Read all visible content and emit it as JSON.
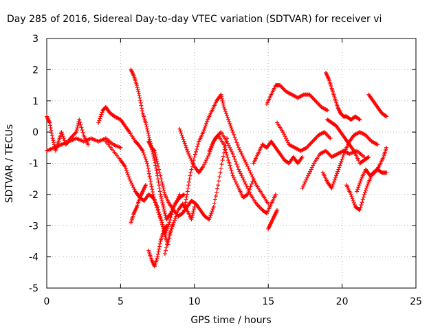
{
  "chart_data": {
    "type": "scatter",
    "title": "Day 285 of 2016, Sidereal Day-to-day VTEC variation (SDTVAR) for receiver vi",
    "xlabel": "GPS time / hours",
    "ylabel": "SDTVAR / TECUs",
    "xlim": [
      0,
      25
    ],
    "ylim": [
      -5,
      3
    ],
    "xticks": [
      "0",
      "5",
      "10",
      "15",
      "20",
      "25"
    ],
    "yticks": [
      "3",
      "2",
      "1",
      "0",
      "-1",
      "-2",
      "-3",
      "-4",
      "-5"
    ],
    "grid": true,
    "marker": "+",
    "color": "#ff0000",
    "series": [
      {
        "x": [
          0.0,
          0.2,
          0.4,
          0.6,
          0.8,
          1.0,
          1.3,
          1.6,
          2.0,
          2.2,
          2.5,
          2.8
        ],
        "y": [
          0.5,
          0.3,
          -0.2,
          -0.6,
          -0.3,
          0.0,
          -0.4,
          -0.2,
          0.0,
          0.4,
          -0.1,
          -0.4
        ]
      },
      {
        "x": [
          0.0,
          0.5,
          1.0,
          1.5,
          2.0,
          2.5,
          3.0,
          3.5,
          4.0,
          4.5,
          5.0
        ],
        "y": [
          -0.6,
          -0.5,
          -0.4,
          -0.3,
          -0.2,
          -0.3,
          -0.2,
          -0.3,
          -0.2,
          -0.4,
          -0.5
        ]
      },
      {
        "x": [
          3.5,
          3.8,
          4.0,
          4.3,
          4.6,
          5.0,
          5.3,
          5.6,
          6.0,
          6.2,
          6.5,
          6.8,
          7.0,
          7.2,
          7.5,
          7.8,
          8.0,
          8.2,
          8.5
        ],
        "y": [
          0.3,
          0.7,
          0.8,
          0.6,
          0.5,
          0.4,
          0.2,
          0.0,
          -0.3,
          -0.4,
          -0.6,
          -1.0,
          -1.5,
          -2.0,
          -2.5,
          -2.9,
          -3.3,
          -3.6,
          -3.0
        ]
      },
      {
        "x": [
          4.0,
          4.5,
          5.0,
          5.3,
          5.6,
          6.0,
          6.3,
          6.6,
          6.9,
          7.2,
          7.5,
          7.8,
          8.0,
          8.3,
          8.6,
          9.0
        ],
        "y": [
          -0.3,
          -0.6,
          -0.9,
          -1.1,
          -1.5,
          -1.9,
          -2.1,
          -2.2,
          -2.0,
          -2.1,
          -2.4,
          -2.9,
          -3.3,
          -2.9,
          -2.4,
          -2.0
        ]
      },
      {
        "x": [
          5.7,
          5.9,
          6.1,
          6.3,
          6.5,
          6.7,
          6.9,
          7.1,
          7.3,
          7.5,
          7.7,
          7.9,
          8.1,
          8.4,
          8.7,
          9.0,
          9.3
        ],
        "y": [
          2.0,
          1.8,
          1.5,
          1.1,
          0.6,
          0.3,
          -0.1,
          -0.5,
          -0.9,
          -1.4,
          -2.0,
          -2.4,
          -2.8,
          -2.6,
          -2.3,
          -2.1,
          -2.0
        ]
      },
      {
        "x": [
          5.7,
          5.9,
          6.1,
          6.3,
          6.5,
          6.7
        ],
        "y": [
          -2.9,
          -2.6,
          -2.4,
          -2.1,
          -1.9,
          -1.7
        ]
      },
      {
        "x": [
          6.9,
          7.1,
          7.3,
          7.5,
          7.8,
          8.0,
          8.3,
          8.6,
          8.9,
          9.2,
          9.5,
          9.8,
          10.1,
          10.4,
          10.7,
          11.0,
          11.3,
          11.6,
          11.9,
          12.2
        ],
        "y": [
          -0.3,
          -0.5,
          -0.6,
          -1.0,
          -1.6,
          -2.0,
          -2.3,
          -2.5,
          -2.7,
          -2.6,
          -2.4,
          -2.2,
          -2.3,
          -2.5,
          -2.7,
          -2.8,
          -2.4,
          -1.7,
          -0.9,
          -0.2
        ]
      },
      {
        "x": [
          6.9,
          7.1,
          7.3,
          7.5,
          7.7,
          7.9,
          8.1
        ],
        "y": [
          -3.8,
          -4.1,
          -4.3,
          -4.0,
          -3.5,
          -3.2,
          -3.0
        ]
      },
      {
        "x": [
          8.0,
          8.3,
          8.6,
          8.9,
          9.2,
          9.5,
          9.8,
          10.0
        ],
        "y": [
          -3.9,
          -3.3,
          -2.9,
          -2.5,
          -2.3,
          -2.5,
          -2.8,
          -2.4
        ]
      },
      {
        "x": [
          9.3,
          9.5,
          9.7,
          10.0,
          10.3,
          10.6,
          10.9,
          11.2,
          11.5,
          11.8,
          12.0,
          12.3,
          12.6,
          13.0,
          13.4,
          13.8,
          14.2,
          14.6,
          15.0
        ],
        "y": [
          -2.5,
          -2.0,
          -1.4,
          -0.8,
          -0.3,
          0.0,
          0.4,
          0.7,
          1.0,
          1.2,
          0.8,
          0.4,
          0.0,
          -0.5,
          -0.9,
          -1.3,
          -1.7,
          -2.0,
          -2.3
        ]
      },
      {
        "x": [
          9.0,
          9.3,
          9.6,
          10.0,
          10.3,
          10.6,
          11.0,
          11.3,
          11.6,
          12.0,
          12.3,
          12.6,
          13.0,
          13.3,
          13.6,
          14.0
        ],
        "y": [
          0.1,
          -0.3,
          -0.7,
          -1.1,
          -1.3,
          -1.1,
          -0.7,
          -0.3,
          -0.1,
          -0.4,
          -0.9,
          -1.4,
          -1.8,
          -2.1,
          -2.0,
          -1.5
        ]
      },
      {
        "x": [
          11.0,
          11.4,
          11.8,
          12.2,
          12.6,
          13.0,
          13.4,
          13.8,
          14.2,
          14.6,
          14.9,
          15.2,
          15.5
        ],
        "y": [
          -0.6,
          -0.2,
          0.0,
          -0.3,
          -0.7,
          -1.2,
          -1.6,
          -2.0,
          -2.3,
          -2.5,
          -2.6,
          -2.3,
          -2.0
        ]
      },
      {
        "x": [
          15.0,
          15.2,
          15.4,
          15.6
        ],
        "y": [
          -3.1,
          -2.9,
          -2.7,
          -2.5
        ]
      },
      {
        "x": [
          14.0,
          14.3,
          14.6,
          14.9,
          15.2,
          15.5,
          15.8,
          16.1,
          16.4,
          16.7,
          17.0,
          17.3
        ],
        "y": [
          -1.0,
          -0.7,
          -0.4,
          -0.5,
          -0.3,
          -0.5,
          -0.7,
          -0.9,
          -1.0,
          -0.8,
          -1.0,
          -0.8
        ]
      },
      {
        "x": [
          14.9,
          15.2,
          15.5,
          15.8,
          16.2,
          16.6,
          17.0,
          17.4,
          17.8,
          18.2,
          18.6,
          19.0
        ],
        "y": [
          0.9,
          1.2,
          1.5,
          1.5,
          1.3,
          1.2,
          1.1,
          1.2,
          1.2,
          1.0,
          0.8,
          0.7
        ]
      },
      {
        "x": [
          15.6,
          16.0,
          16.4,
          16.8,
          17.2,
          17.6,
          18.0,
          18.4,
          18.8,
          19.2
        ],
        "y": [
          0.3,
          0.0,
          -0.4,
          -0.5,
          -0.6,
          -0.5,
          -0.3,
          -0.1,
          0.0,
          -0.2
        ]
      },
      {
        "x": [
          17.3,
          17.7,
          18.1,
          18.5,
          18.9,
          19.3,
          19.7,
          20.1,
          20.5,
          21.0,
          21.5
        ],
        "y": [
          -1.8,
          -1.4,
          -1.0,
          -0.7,
          -0.6,
          -0.8,
          -0.7,
          -0.6,
          -0.7,
          -0.6,
          -0.8
        ]
      },
      {
        "x": [
          18.9,
          19.1,
          19.3,
          19.5,
          19.7,
          19.9,
          20.1,
          20.3,
          20.6,
          20.9,
          21.2
        ],
        "y": [
          1.9,
          1.7,
          1.4,
          1.1,
          0.8,
          0.6,
          0.5,
          0.5,
          0.4,
          0.5,
          0.4
        ]
      },
      {
        "x": [
          18.7,
          19.0,
          19.3,
          19.6,
          19.9,
          20.2,
          20.5,
          20.8,
          21.2,
          21.6,
          22.0,
          22.4
        ],
        "y": [
          -1.3,
          -1.6,
          -1.8,
          -1.4,
          -1.0,
          -0.6,
          -0.3,
          -0.1,
          0.0,
          -0.1,
          -0.3,
          -0.4
        ]
      },
      {
        "x": [
          19.0,
          19.3,
          19.6,
          19.9,
          20.2,
          20.5,
          20.8,
          21.1
        ],
        "y": [
          0.4,
          0.3,
          0.2,
          0.0,
          -0.2,
          -0.4,
          -0.6,
          -0.9
        ]
      },
      {
        "x": [
          20.3,
          20.6,
          20.9,
          21.2,
          21.5,
          21.8,
          22.1,
          22.4,
          22.7,
          23.0
        ],
        "y": [
          -1.7,
          -2.0,
          -2.4,
          -2.5,
          -2.0,
          -1.6,
          -1.3,
          -1.2,
          -1.3,
          -1.3
        ]
      },
      {
        "x": [
          21.0,
          21.3,
          21.6,
          21.9,
          22.2,
          22.5,
          22.8,
          23.0
        ],
        "y": [
          -1.9,
          -1.5,
          -1.2,
          -1.4,
          -1.3,
          -1.1,
          -0.8,
          -0.5
        ]
      },
      {
        "x": [
          21.8,
          22.1,
          22.4,
          22.7,
          23.0
        ],
        "y": [
          1.2,
          1.0,
          0.8,
          0.6,
          0.5
        ]
      },
      {
        "x": [
          21.2,
          21.5,
          21.8
        ],
        "y": [
          -1.0,
          -0.9,
          -0.8
        ]
      }
    ]
  }
}
